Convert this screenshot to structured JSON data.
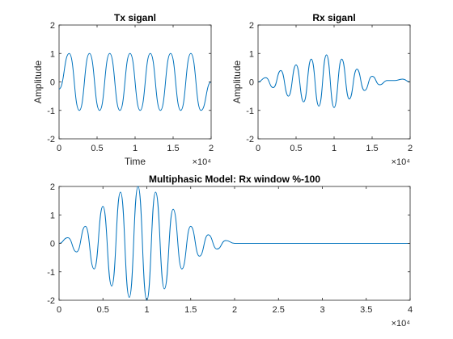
{
  "chart_data": [
    {
      "type": "line",
      "title": "Tx siganl",
      "xlabel": "Time",
      "ylabel": "Amplitude",
      "xlim": [
        0,
        20000
      ],
      "ylim": [
        -2,
        2
      ],
      "xticks": [
        0,
        5000,
        10000,
        15000,
        20000
      ],
      "xtick_labels": [
        "0",
        "0.5",
        "1",
        "1.5",
        "2"
      ],
      "yticks": [
        -2,
        -1,
        0,
        1,
        2
      ],
      "ytick_labels": [
        "-2",
        "-1",
        "0",
        "1",
        "2"
      ],
      "x_exponent": "×10⁴",
      "series_color": "#0072BD",
      "series": [
        {
          "x": [
            0,
            1333,
            2667,
            4000,
            5333,
            6667,
            8000,
            9333,
            10667,
            12000,
            13333,
            14667,
            16000,
            17333,
            18667,
            20000
          ],
          "y": [
            -0.25,
            1,
            -1,
            1,
            -1,
            1,
            -1,
            1,
            -1,
            1,
            -1,
            1,
            -1,
            1,
            -1,
            0
          ]
        }
      ]
    },
    {
      "type": "line",
      "title": "Rx siganl",
      "xlabel": "",
      "ylabel": "Amplitude",
      "xlim": [
        0,
        20000
      ],
      "ylim": [
        -2,
        2
      ],
      "xticks": [
        0,
        5000,
        10000,
        15000,
        20000
      ],
      "xtick_labels": [
        "0",
        "0.5",
        "1",
        "1.5",
        "2"
      ],
      "yticks": [
        -2,
        -1,
        0,
        1,
        2
      ],
      "ytick_labels": [
        "-2",
        "-1",
        "0",
        "1",
        "2"
      ],
      "x_exponent": "×10⁴",
      "series_color": "#0072BD",
      "series": [
        {
          "x": [
            0,
            1000,
            2000,
            3000,
            4000,
            5000,
            6000,
            7000,
            8000,
            9000,
            10000,
            11000,
            12000,
            13000,
            14000,
            15000,
            16000,
            17000,
            18000,
            19000,
            20000
          ],
          "y": [
            0,
            0.15,
            -0.2,
            0.4,
            -0.5,
            0.6,
            -0.7,
            0.8,
            -0.85,
            0.95,
            -0.9,
            0.8,
            -0.6,
            0.45,
            -0.3,
            0.2,
            -0.1,
            0.05,
            0.05,
            0.1,
            0
          ]
        }
      ]
    },
    {
      "type": "line",
      "title": "Multiphasic Model: Rx window %-100",
      "xlabel": "",
      "ylabel": "",
      "xlim": [
        0,
        40000
      ],
      "ylim": [
        -2,
        2
      ],
      "xticks": [
        0,
        5000,
        10000,
        15000,
        20000,
        25000,
        30000,
        35000,
        40000
      ],
      "xtick_labels": [
        "0",
        "0.5",
        "1",
        "1.5",
        "2",
        "2.5",
        "3",
        "3.5",
        "4"
      ],
      "yticks": [
        -2,
        -1,
        0,
        1,
        2
      ],
      "ytick_labels": [
        "-2",
        "-1",
        "0",
        "1",
        "2"
      ],
      "x_exponent": "×10⁴",
      "series_color": "#0072BD",
      "series": [
        {
          "x": [
            0,
            1000,
            2000,
            3000,
            4000,
            5000,
            6000,
            7000,
            8000,
            9000,
            10000,
            11000,
            12000,
            13000,
            14000,
            15000,
            16000,
            17000,
            18000,
            19000,
            20000,
            40000
          ],
          "y": [
            0,
            0.2,
            -0.3,
            0.6,
            -0.9,
            1.3,
            -1.5,
            1.8,
            -1.9,
            2.0,
            -2.0,
            1.8,
            -1.6,
            1.2,
            -0.9,
            0.6,
            -0.45,
            0.3,
            -0.2,
            0.1,
            0,
            0
          ]
        }
      ]
    }
  ]
}
